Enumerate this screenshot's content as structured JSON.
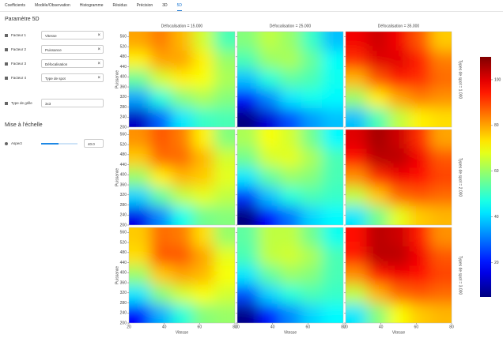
{
  "tabs": {
    "items": [
      "Coefficients",
      "Modèle/Observation",
      "Histogramme",
      "Résidus",
      "Précision",
      "3D",
      "5D"
    ],
    "active": 6
  },
  "sidebar": {
    "title": "Paramètre 5D",
    "factors": [
      {
        "label": "Facteur 1",
        "value": "Vitesse"
      },
      {
        "label": "Facteur 2",
        "value": "Puissance"
      },
      {
        "label": "Facteur 3",
        "value": "Défocalisation"
      },
      {
        "label": "Facteur 4",
        "value": "Type de spot"
      }
    ],
    "grid_type": {
      "label": "Type de grille",
      "value": "3x3"
    },
    "scaling_title": "Mise à l'échelle",
    "aspect": {
      "label": "Aspect",
      "value": "40.0"
    }
  },
  "chart_data": {
    "type": "heatmap",
    "column_titles": [
      "Défocalisation = 15.000",
      "Défocalisation = 25.000",
      "Défocalisation = 35.000"
    ],
    "row_titles": [
      "Types de spot = 1.000",
      "Types de spot = 2.000",
      "Types de spot = 3.000"
    ],
    "x_label": "Vitesse",
    "y_label": "Puissance",
    "x": [
      26,
      38,
      50,
      62,
      74
    ],
    "y": [
      542,
      466,
      390,
      314,
      238
    ],
    "xlim": [
      20,
      80
    ],
    "ylim": [
      200,
      580
    ],
    "xticks": [
      20,
      40,
      60,
      80
    ],
    "yticks": [
      200,
      240,
      280,
      320,
      360,
      400,
      440,
      480,
      520,
      560
    ],
    "colorbar": {
      "lim": [
        5,
        110
      ],
      "ticks": [
        20,
        40,
        60,
        80,
        100
      ]
    },
    "panels": [
      [
        [
          [
            80,
            84,
            78,
            66,
            52
          ],
          [
            72,
            80,
            80,
            72,
            60
          ],
          [
            55,
            66,
            72,
            70,
            62
          ],
          [
            35,
            48,
            58,
            62,
            58
          ],
          [
            12,
            28,
            42,
            50,
            52
          ]
        ],
        [
          [
            58,
            64,
            60,
            50,
            38
          ],
          [
            52,
            60,
            62,
            55,
            45
          ],
          [
            38,
            48,
            54,
            52,
            46
          ],
          [
            20,
            32,
            42,
            46,
            44
          ],
          [
            2,
            14,
            26,
            34,
            38
          ]
        ],
        [
          [
            98,
            102,
            98,
            88,
            76
          ],
          [
            92,
            100,
            100,
            94,
            84
          ],
          [
            78,
            88,
            94,
            92,
            86
          ],
          [
            60,
            72,
            80,
            84,
            82
          ],
          [
            38,
            52,
            64,
            72,
            74
          ]
        ]
      ],
      [
        [
          [
            82,
            88,
            84,
            72,
            58
          ],
          [
            76,
            86,
            86,
            78,
            66
          ],
          [
            60,
            72,
            78,
            76,
            68
          ],
          [
            40,
            54,
            64,
            68,
            64
          ],
          [
            16,
            32,
            46,
            56,
            58
          ]
        ],
        [
          [
            62,
            70,
            66,
            56,
            44
          ],
          [
            56,
            66,
            68,
            62,
            52
          ],
          [
            42,
            54,
            60,
            58,
            52
          ],
          [
            24,
            38,
            48,
            52,
            50
          ],
          [
            4,
            18,
            30,
            40,
            44
          ]
        ],
        [
          [
            100,
            106,
            102,
            92,
            80
          ],
          [
            96,
            104,
            104,
            98,
            88
          ],
          [
            82,
            92,
            98,
            96,
            90
          ],
          [
            64,
            76,
            86,
            88,
            86
          ],
          [
            42,
            56,
            68,
            76,
            78
          ]
        ]
      ],
      [
        [
          [
            76,
            86,
            84,
            74,
            60
          ],
          [
            74,
            88,
            88,
            80,
            68
          ],
          [
            60,
            76,
            80,
            78,
            70
          ],
          [
            42,
            58,
            66,
            70,
            66
          ],
          [
            18,
            36,
            48,
            58,
            60
          ]
        ],
        [
          [
            54,
            64,
            64,
            56,
            46
          ],
          [
            52,
            64,
            66,
            62,
            52
          ],
          [
            42,
            54,
            60,
            58,
            52
          ],
          [
            26,
            40,
            48,
            52,
            50
          ],
          [
            6,
            20,
            32,
            40,
            44
          ]
        ],
        [
          [
            96,
            104,
            102,
            94,
            82
          ],
          [
            94,
            104,
            104,
            98,
            88
          ],
          [
            82,
            94,
            98,
            96,
            90
          ],
          [
            64,
            78,
            86,
            88,
            86
          ],
          [
            42,
            58,
            70,
            76,
            78
          ]
        ]
      ]
    ]
  }
}
